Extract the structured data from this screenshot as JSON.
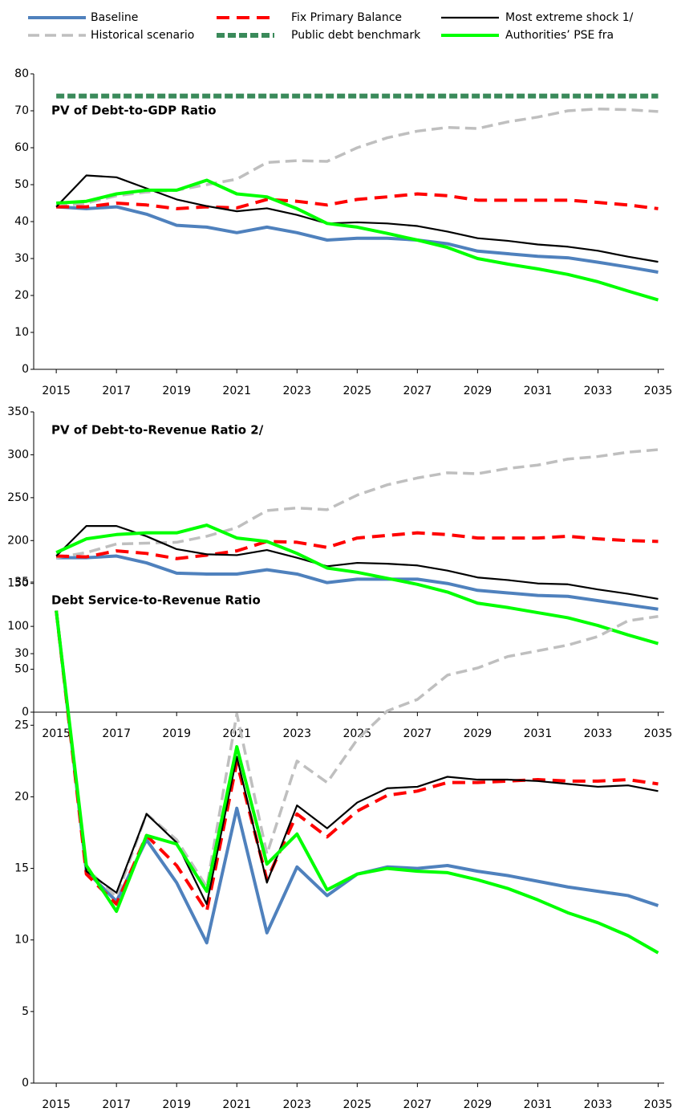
{
  "chart_data": [
    {
      "type": "line",
      "title": "PV of Debt-to-GDP  Ratio",
      "x": [
        2015,
        2016,
        2017,
        2018,
        2019,
        2020,
        2021,
        2022,
        2023,
        2024,
        2025,
        2026,
        2027,
        2028,
        2029,
        2030,
        2031,
        2032,
        2033,
        2034,
        2035
      ],
      "xlim": [
        2014.25,
        2035.2
      ],
      "xticks": [
        2015,
        2017,
        2019,
        2021,
        2023,
        2025,
        2027,
        2029,
        2031,
        2033,
        2035
      ],
      "ylim": [
        0,
        80
      ],
      "yticks": [
        0,
        10,
        20,
        30,
        40,
        50,
        60,
        70,
        80
      ],
      "series": [
        {
          "name": "Baseline",
          "color": "#4f81bd",
          "style": "solid",
          "values": [
            44,
            43.5,
            44,
            42,
            39,
            38.5,
            37,
            38.5,
            37,
            35,
            35.5,
            35.5,
            35,
            34,
            32,
            31.3,
            30.6,
            30.2,
            29,
            27.7,
            26.3
          ]
        },
        {
          "name": "Historical scenario",
          "color": "#bfbfbf",
          "style": "dashed",
          "values": [
            44,
            45,
            47,
            48,
            48.5,
            50,
            51.5,
            56,
            56.5,
            56.3,
            60,
            62.7,
            64.5,
            65.5,
            65.2,
            67,
            68.3,
            70,
            70.5,
            70.3,
            69.8
          ]
        },
        {
          "name": "Fix Primary Balance",
          "color": "#ff0000",
          "style": "longdash",
          "values": [
            44,
            44,
            45,
            44.5,
            43.5,
            44,
            43.7,
            46,
            45.5,
            44.5,
            46,
            46.7,
            47.5,
            47,
            45.8,
            45.8,
            45.8,
            45.8,
            45.2,
            44.5,
            43.5
          ]
        },
        {
          "name": "Public debt benchmark",
          "color": "#3a8a5a",
          "style": "thickdash",
          "values": [
            74,
            74,
            74,
            74,
            74,
            74,
            74,
            74,
            74,
            74,
            74,
            74,
            74,
            74,
            74,
            74,
            74,
            74,
            74,
            74,
            74
          ]
        },
        {
          "name": "Most extreme shock  1/",
          "color": "#000000",
          "style": "thin",
          "values": [
            44,
            52.5,
            52,
            49,
            46,
            44.2,
            42.8,
            43.6,
            41.8,
            39.5,
            39.8,
            39.5,
            38.8,
            37.3,
            35.5,
            34.8,
            33.8,
            33.2,
            32.1,
            30.5,
            29.1
          ]
        },
        {
          "name": "Authorities’ PSE fra",
          "color": "#00ff00",
          "style": "solid",
          "values": [
            45,
            45.5,
            47.5,
            48.5,
            48.5,
            51.2,
            47.5,
            46.7,
            43.5,
            39.5,
            38.5,
            36.8,
            35,
            33,
            30,
            28.5,
            27.2,
            25.7,
            23.7,
            21.2,
            18.8
          ]
        }
      ]
    },
    {
      "type": "line",
      "title": "PV of Debt-to-Revenue  Ratio 2/",
      "x": [
        2015,
        2016,
        2017,
        2018,
        2019,
        2020,
        2021,
        2022,
        2023,
        2024,
        2025,
        2026,
        2027,
        2028,
        2029,
        2030,
        2031,
        2032,
        2033,
        2034,
        2035
      ],
      "xlim": [
        2014.25,
        2035.2
      ],
      "xticks": [
        2015,
        2017,
        2019,
        2021,
        2023,
        2025,
        2027,
        2029,
        2031,
        2033,
        2035
      ],
      "ylim": [
        0,
        350
      ],
      "yticks": [
        0,
        50,
        100,
        150,
        200,
        250,
        300,
        350
      ],
      "series": [
        {
          "color": "#4f81bd",
          "style": "solid",
          "values": [
            180,
            180,
            182,
            174,
            162,
            161,
            161,
            166,
            161,
            151,
            155,
            155,
            155,
            150,
            142,
            139,
            136,
            135,
            130,
            125,
            120
          ]
        },
        {
          "color": "#bfbfbf",
          "style": "dashed",
          "values": [
            180,
            186,
            196,
            197,
            198,
            205,
            215,
            235,
            238,
            236,
            253,
            265,
            273,
            279,
            278,
            284,
            288,
            295,
            298,
            303,
            306
          ]
        },
        {
          "color": "#ff0000",
          "style": "longdash",
          "values": [
            182,
            181,
            188,
            185,
            179,
            183,
            188,
            199,
            198,
            192,
            203,
            206,
            209,
            207,
            203,
            203,
            203,
            205,
            202,
            200,
            199
          ]
        },
        {
          "color": "#000000",
          "style": "thin",
          "values": [
            182,
            217,
            217,
            205,
            190,
            184,
            183,
            189,
            180,
            170,
            174,
            173,
            171,
            165,
            157,
            154,
            150,
            149,
            143,
            138,
            132
          ]
        },
        {
          "color": "#00ff00",
          "style": "solid",
          "values": [
            186,
            202,
            207,
            209,
            209,
            218,
            203,
            199,
            185,
            168,
            163,
            156,
            149,
            140,
            127,
            122,
            116,
            110,
            101,
            90,
            80
          ]
        }
      ]
    },
    {
      "type": "line",
      "title": "Debt Service-to-Revenue  Ratio",
      "x": [
        2015,
        2016,
        2017,
        2018,
        2019,
        2020,
        2021,
        2022,
        2023,
        2024,
        2025,
        2026,
        2027,
        2028,
        2029,
        2030,
        2031,
        2032,
        2033,
        2034,
        2035
      ],
      "xlim": [
        2014.25,
        2035.2
      ],
      "xticks": [
        2015,
        2017,
        2019,
        2021,
        2023,
        2025,
        2027,
        2029,
        2031,
        2033,
        2035
      ],
      "ylim": [
        0,
        35
      ],
      "yticks": [
        0,
        5,
        10,
        15,
        20,
        25,
        30,
        35
      ],
      "series": [
        {
          "color": "#4f81bd",
          "style": "solid",
          "values": [
            33,
            14.8,
            12.7,
            17,
            14,
            9.8,
            19.2,
            10.5,
            15.1,
            13.1,
            14.6,
            15.1,
            15,
            15.2,
            14.8,
            14.5,
            14.1,
            13.7,
            13.4,
            13.1,
            12.4
          ]
        },
        {
          "color": "#bfbfbf",
          "style": "dashed",
          "values": [
            33,
            15,
            13,
            18.8,
            17,
            13.7,
            25.8,
            16,
            22.5,
            21,
            24,
            26,
            26.8,
            28.5,
            29,
            29.8,
            30.2,
            30.6,
            31.2,
            32.3,
            32.6
          ]
        },
        {
          "color": "#ff0000",
          "style": "longdash",
          "values": [
            33,
            14.6,
            12.5,
            17.3,
            15.2,
            12,
            22.4,
            14.2,
            18.8,
            17.2,
            19,
            20.1,
            20.4,
            21,
            21,
            21.1,
            21.2,
            21.1,
            21.1,
            21.2,
            20.9
          ]
        },
        {
          "color": "#000000",
          "style": "thin",
          "values": [
            33,
            14.8,
            13.3,
            18.8,
            16.8,
            12.5,
            22.8,
            14,
            19.4,
            17.8,
            19.6,
            20.6,
            20.7,
            21.4,
            21.2,
            21.2,
            21.1,
            20.9,
            20.7,
            20.8,
            20.4
          ]
        },
        {
          "color": "#00ff00",
          "style": "solid",
          "values": [
            33,
            15.2,
            12,
            17.3,
            16.7,
            13.4,
            23.5,
            15.3,
            17.4,
            13.5,
            14.6,
            15,
            14.8,
            14.7,
            14.2,
            13.6,
            12.8,
            11.9,
            11.2,
            10.3,
            9.1
          ]
        }
      ]
    }
  ]
}
